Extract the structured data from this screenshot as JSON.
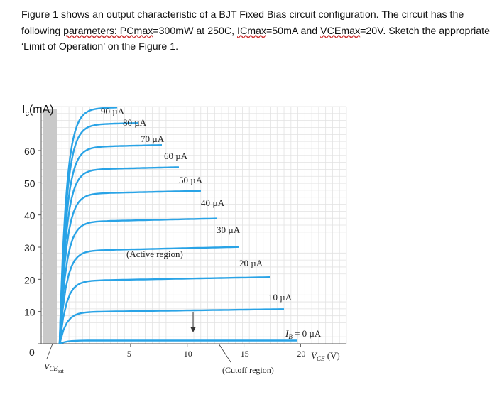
{
  "question": {
    "part1": "Figure 1 shows an output characteristic of a BJT Fixed Bias circuit configuration. The circuit has the following ",
    "part2": "parameters: PCmax",
    "part3": "=300mW at 250C, ",
    "part4": "ICmax",
    "part5": "=50mA and ",
    "part6": "VCEmax",
    "part7": "=20V. Sketch the appropriate ‘Limit of Operation’ on the Figure 1."
  },
  "chart_data": {
    "type": "line",
    "ylabel_main": "I",
    "ylabel_sub": "c",
    "ylabel_unit": "(mA)",
    "xlabel_main": "V",
    "xlabel_sub": "CE",
    "xlabel_unit": " (V)",
    "xlim": [
      0,
      22
    ],
    "ylim": [
      0,
      70
    ],
    "y_ticks": [
      "0",
      "10",
      "20",
      "30",
      "40",
      "50",
      "60"
    ],
    "y_tick_values": [
      0,
      10,
      20,
      30,
      40,
      50,
      60
    ],
    "x_ticks": [
      "5",
      "10",
      "15",
      "20"
    ],
    "x_tick_values": [
      5,
      10,
      15,
      20
    ],
    "grid": true,
    "saturation_label_main": "V",
    "saturation_label_sub": "CE",
    "saturation_label_sub2": "sat",
    "region_label": "(Active region)",
    "cutoff_label": "(Cutoff region)",
    "series_color": "#29a3e6",
    "series": [
      {
        "name": "90 µA",
        "i_sat": 73.0,
        "slope": 0.05
      },
      {
        "name": "80 µA",
        "i_sat": 68.0,
        "slope": 0.05
      },
      {
        "name": "70 µA",
        "i_sat": 61.0,
        "slope": 0.05
      },
      {
        "name": "60 µA",
        "i_sat": 54.0,
        "slope": 0.05
      },
      {
        "name": "50 µA",
        "i_sat": 46.5,
        "slope": 0.05
      },
      {
        "name": "40 µA",
        "i_sat": 37.8,
        "slope": 0.05
      },
      {
        "name": "30 µA",
        "i_sat": 28.8,
        "slope": 0.05
      },
      {
        "name": "20 µA",
        "i_sat": 19.5,
        "slope": 0.04
      },
      {
        "name": "10 µA",
        "i_sat": 9.8,
        "slope": 0.03
      },
      {
        "name": "I",
        "name_sub": "B",
        "name_rest": " = 0 µA",
        "i_sat": 1.0,
        "slope": 0.0
      }
    ]
  }
}
